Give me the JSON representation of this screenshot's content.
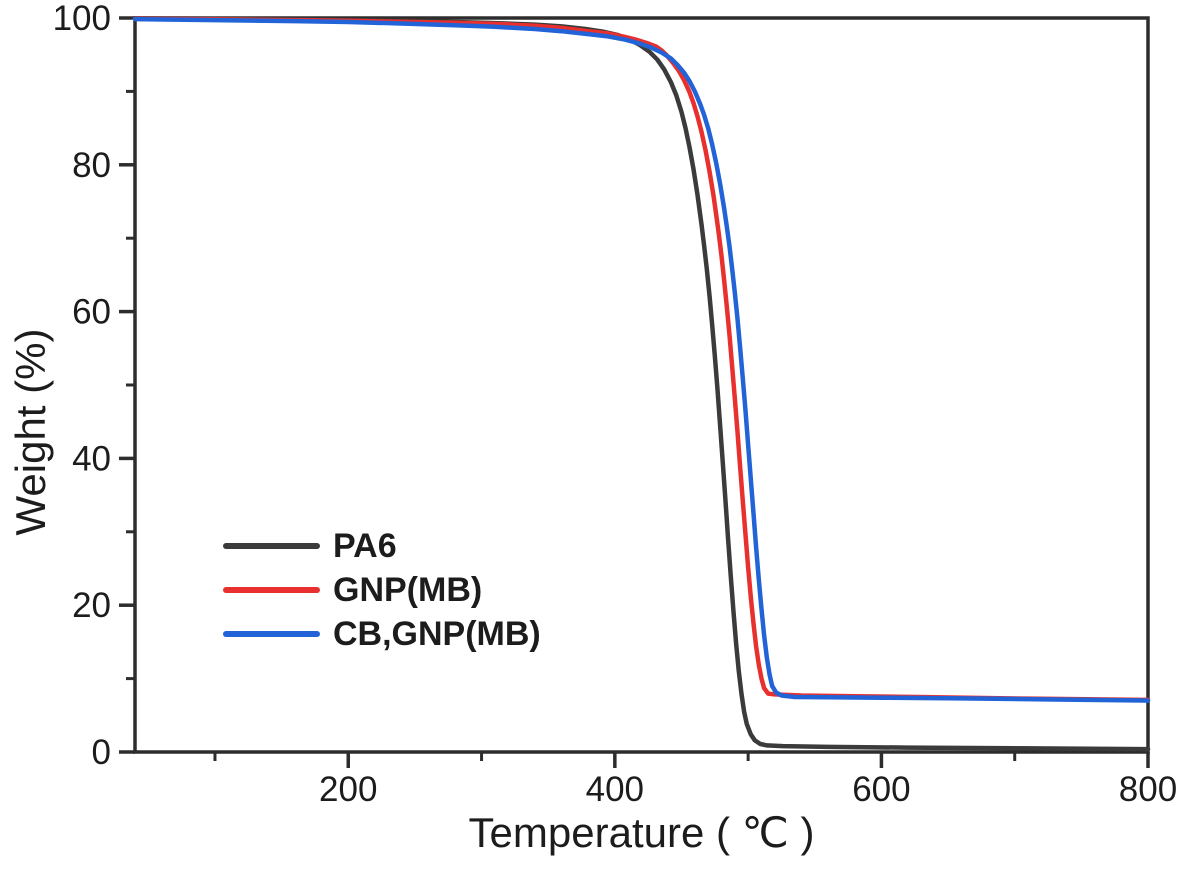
{
  "chart_data": {
    "type": "line",
    "title": "",
    "xlabel": "Temperature ( ℃ )",
    "ylabel": "Weight (%)",
    "xlim": [
      40,
      800
    ],
    "ylim": [
      0,
      100
    ],
    "x_ticks_major": [
      200,
      400,
      600,
      800
    ],
    "x_ticks_minor": [
      100,
      300,
      500,
      700
    ],
    "y_ticks_major": [
      0,
      20,
      40,
      60,
      80,
      100
    ],
    "y_ticks_minor": [
      10,
      30,
      50,
      70,
      90
    ],
    "grid": false,
    "frame": "full-box",
    "legend_position": "inside-lower-left",
    "axis_color": "#2d2d2d",
    "text_color": "#1c1c1c",
    "series": [
      {
        "name": "PA6",
        "color": "#3b3b3b",
        "points": [
          [
            40,
            99.95
          ],
          [
            100,
            99.9
          ],
          [
            160,
            99.8
          ],
          [
            200,
            99.7
          ],
          [
            240,
            99.6
          ],
          [
            280,
            99.45
          ],
          [
            310,
            99.3
          ],
          [
            340,
            99.1
          ],
          [
            360,
            98.85
          ],
          [
            378,
            98.5
          ],
          [
            392,
            98.1
          ],
          [
            402,
            97.7
          ],
          [
            411,
            97.1
          ],
          [
            419,
            96.3
          ],
          [
            426,
            95.4
          ],
          [
            432,
            94.3
          ],
          [
            437,
            93.0
          ],
          [
            442,
            91.3
          ],
          [
            446,
            89.5
          ],
          [
            450,
            87.2
          ],
          [
            453,
            85.0
          ],
          [
            456,
            82.4
          ],
          [
            459,
            79.4
          ],
          [
            462,
            75.9
          ],
          [
            465,
            71.9
          ],
          [
            467,
            69.0
          ],
          [
            469,
            65.8
          ],
          [
            471,
            62.2
          ],
          [
            473,
            58.3
          ],
          [
            475,
            54.0
          ],
          [
            477,
            49.4
          ],
          [
            479,
            44.5
          ],
          [
            481,
            39.4
          ],
          [
            483,
            34.2
          ],
          [
            485,
            29.0
          ],
          [
            487,
            23.9
          ],
          [
            489,
            19.1
          ],
          [
            491,
            14.8
          ],
          [
            493,
            11.0
          ],
          [
            495,
            7.9
          ],
          [
            497,
            5.5
          ],
          [
            499,
            3.8
          ],
          [
            502,
            2.4
          ],
          [
            505,
            1.6
          ],
          [
            509,
            1.1
          ],
          [
            514,
            0.9
          ],
          [
            526,
            0.8
          ],
          [
            560,
            0.7
          ],
          [
            620,
            0.6
          ],
          [
            700,
            0.5
          ],
          [
            800,
            0.4
          ]
        ]
      },
      {
        "name": "GNP(MB)",
        "color": "#e8312e",
        "points": [
          [
            40,
            99.9
          ],
          [
            100,
            99.82
          ],
          [
            160,
            99.72
          ],
          [
            200,
            99.62
          ],
          [
            240,
            99.5
          ],
          [
            280,
            99.35
          ],
          [
            310,
            99.2
          ],
          [
            340,
            98.95
          ],
          [
            360,
            98.65
          ],
          [
            380,
            98.2
          ],
          [
            395,
            97.9
          ],
          [
            406,
            97.5
          ],
          [
            415,
            97.1
          ],
          [
            424,
            96.6
          ],
          [
            431,
            96.1
          ],
          [
            435,
            95.6
          ],
          [
            439,
            94.9
          ],
          [
            444,
            93.8
          ],
          [
            448,
            92.8
          ],
          [
            452,
            91.5
          ],
          [
            456,
            89.9
          ],
          [
            459,
            88.4
          ],
          [
            462,
            86.6
          ],
          [
            465,
            84.5
          ],
          [
            468,
            82.0
          ],
          [
            471,
            79.1
          ],
          [
            474,
            75.8
          ],
          [
            476,
            73.3
          ],
          [
            478,
            70.6
          ],
          [
            480,
            67.6
          ],
          [
            482,
            64.3
          ],
          [
            484,
            60.7
          ],
          [
            486,
            56.8
          ],
          [
            488,
            52.6
          ],
          [
            490,
            48.2
          ],
          [
            492,
            43.6
          ],
          [
            494,
            38.9
          ],
          [
            496,
            34.2
          ],
          [
            498,
            29.6
          ],
          [
            500,
            25.2
          ],
          [
            502,
            21.1
          ],
          [
            504,
            17.5
          ],
          [
            506,
            14.4
          ],
          [
            508,
            11.9
          ],
          [
            510,
            10.0
          ],
          [
            512,
            8.7
          ],
          [
            515,
            7.95
          ],
          [
            520,
            7.85
          ],
          [
            540,
            7.7
          ],
          [
            580,
            7.6
          ],
          [
            640,
            7.45
          ],
          [
            720,
            7.25
          ],
          [
            800,
            7.1
          ]
        ]
      },
      {
        "name": "CB,GNP(MB)",
        "color": "#2263d8",
        "points": [
          [
            40,
            99.85
          ],
          [
            100,
            99.72
          ],
          [
            160,
            99.58
          ],
          [
            200,
            99.45
          ],
          [
            240,
            99.25
          ],
          [
            280,
            99.0
          ],
          [
            310,
            98.8
          ],
          [
            340,
            98.5
          ],
          [
            360,
            98.2
          ],
          [
            380,
            97.8
          ],
          [
            395,
            97.5
          ],
          [
            408,
            97.05
          ],
          [
            418,
            96.55
          ],
          [
            427,
            96.0
          ],
          [
            435,
            95.3
          ],
          [
            442,
            94.5
          ],
          [
            447,
            93.6
          ],
          [
            452,
            92.5
          ],
          [
            456,
            91.4
          ],
          [
            460,
            90.0
          ],
          [
            464,
            88.3
          ],
          [
            467,
            86.8
          ],
          [
            470,
            85.0
          ],
          [
            473,
            82.8
          ],
          [
            476,
            80.3
          ],
          [
            479,
            77.4
          ],
          [
            482,
            74.1
          ],
          [
            484,
            71.6
          ],
          [
            486,
            68.9
          ],
          [
            488,
            65.9
          ],
          [
            490,
            62.6
          ],
          [
            492,
            59.0
          ],
          [
            494,
            55.1
          ],
          [
            496,
            50.9
          ],
          [
            498,
            46.5
          ],
          [
            500,
            41.9
          ],
          [
            502,
            37.2
          ],
          [
            504,
            32.5
          ],
          [
            506,
            27.9
          ],
          [
            508,
            23.5
          ],
          [
            510,
            19.5
          ],
          [
            512,
            15.9
          ],
          [
            514,
            12.9
          ],
          [
            516,
            10.6
          ],
          [
            518,
            9.0
          ],
          [
            521,
            8.1
          ],
          [
            525,
            7.7
          ],
          [
            535,
            7.5
          ],
          [
            560,
            7.45
          ],
          [
            600,
            7.4
          ],
          [
            660,
            7.3
          ],
          [
            730,
            7.15
          ],
          [
            800,
            7.0
          ]
        ]
      }
    ]
  }
}
